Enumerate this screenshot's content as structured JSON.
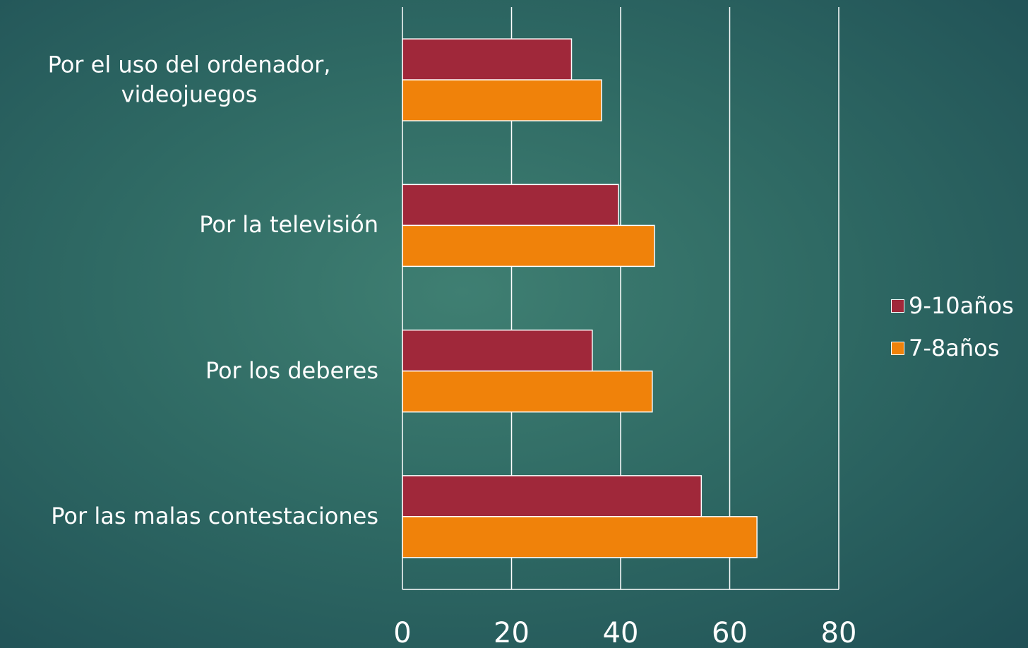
{
  "chart_data": {
    "type": "hbar",
    "categories": [
      "Por el uso del ordenador, videojuegos",
      "Por la televisión",
      "Por los deberes",
      "Por las malas contestaciones"
    ],
    "series": [
      {
        "name": "9-10años",
        "color": "#a0283a",
        "values": [
          31,
          39.6,
          34.8,
          54.8
        ]
      },
      {
        "name": "7-8años",
        "color": "#f0820a",
        "values": [
          36.5,
          46.2,
          45.8,
          65
        ]
      }
    ],
    "xlim": [
      0,
      80
    ],
    "xticks": [
      0,
      20,
      40,
      60,
      80
    ],
    "grid": true,
    "legend": "right"
  }
}
